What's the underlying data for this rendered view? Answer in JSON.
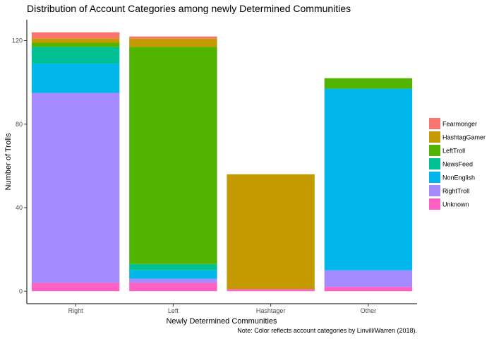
{
  "chart_data": {
    "type": "bar",
    "stacked": true,
    "title": "Distribution of Account Categories among newly Determined Communities",
    "xlabel": "Newly Determined Communities",
    "ylabel": "Number of Trolls",
    "caption": "Note: Color reflects account categories by Linvill/Warren (2018).",
    "categories": [
      "Right",
      "Left",
      "Hashtager",
      "Other"
    ],
    "ylim": [
      -6,
      130
    ],
    "yticks": [
      0,
      40,
      80,
      120
    ],
    "grid": false,
    "legend_position": "right",
    "series": [
      {
        "name": "Unknown",
        "color": "#FF61C3",
        "values": [
          4,
          4,
          1,
          2
        ]
      },
      {
        "name": "RightTroll",
        "color": "#A58AFF",
        "values": [
          91,
          2,
          0,
          8
        ]
      },
      {
        "name": "NonEnglish",
        "color": "#00B6EB",
        "values": [
          14,
          4,
          0,
          87
        ]
      },
      {
        "name": "NewsFeed",
        "color": "#00C094",
        "values": [
          8,
          3,
          0,
          0
        ]
      },
      {
        "name": "LeftTroll",
        "color": "#53B400",
        "values": [
          2,
          104,
          0,
          5
        ]
      },
      {
        "name": "HashtagGamer",
        "color": "#C49A00",
        "values": [
          2,
          4,
          55,
          0
        ]
      },
      {
        "name": "Fearmonger",
        "color": "#F8766D",
        "values": [
          3,
          1,
          0,
          0
        ]
      }
    ],
    "legend_order": [
      "Fearmonger",
      "HashtagGamer",
      "LeftTroll",
      "NewsFeed",
      "NonEnglish",
      "RightTroll",
      "Unknown"
    ]
  }
}
